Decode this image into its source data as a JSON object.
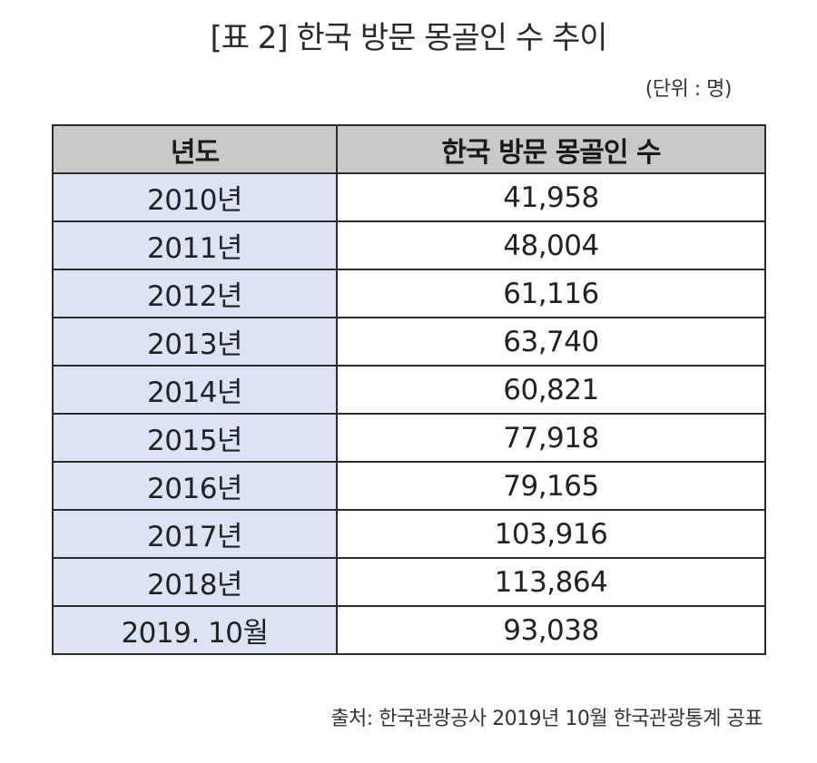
{
  "title": "[표 2] 한국 방문 몽골인 수 추이",
  "unit": "(단위 : 명)",
  "table": {
    "headers": [
      "년도",
      "한국 방문 몽골인 수"
    ],
    "rows": [
      {
        "year": "2010년",
        "count": "41,958"
      },
      {
        "year": "2011년",
        "count": "48,004"
      },
      {
        "year": "2012년",
        "count": "61,116"
      },
      {
        "year": "2013년",
        "count": "63,740"
      },
      {
        "year": "2014년",
        "count": "60,821"
      },
      {
        "year": "2015년",
        "count": "77,918"
      },
      {
        "year": "2016년",
        "count": "79,165"
      },
      {
        "year": "2017년",
        "count": "103,916"
      },
      {
        "year": "2018년",
        "count": "113,864"
      },
      {
        "year": "2019. 10월",
        "count": "93,038"
      }
    ]
  },
  "source": "출처: 한국관광공사 2019년 10월 한국관광통계 공표",
  "colors": {
    "header_bg": "#c9c9c9",
    "year_col_bg": "#dbe4f4",
    "border": "#2b2b2b"
  }
}
